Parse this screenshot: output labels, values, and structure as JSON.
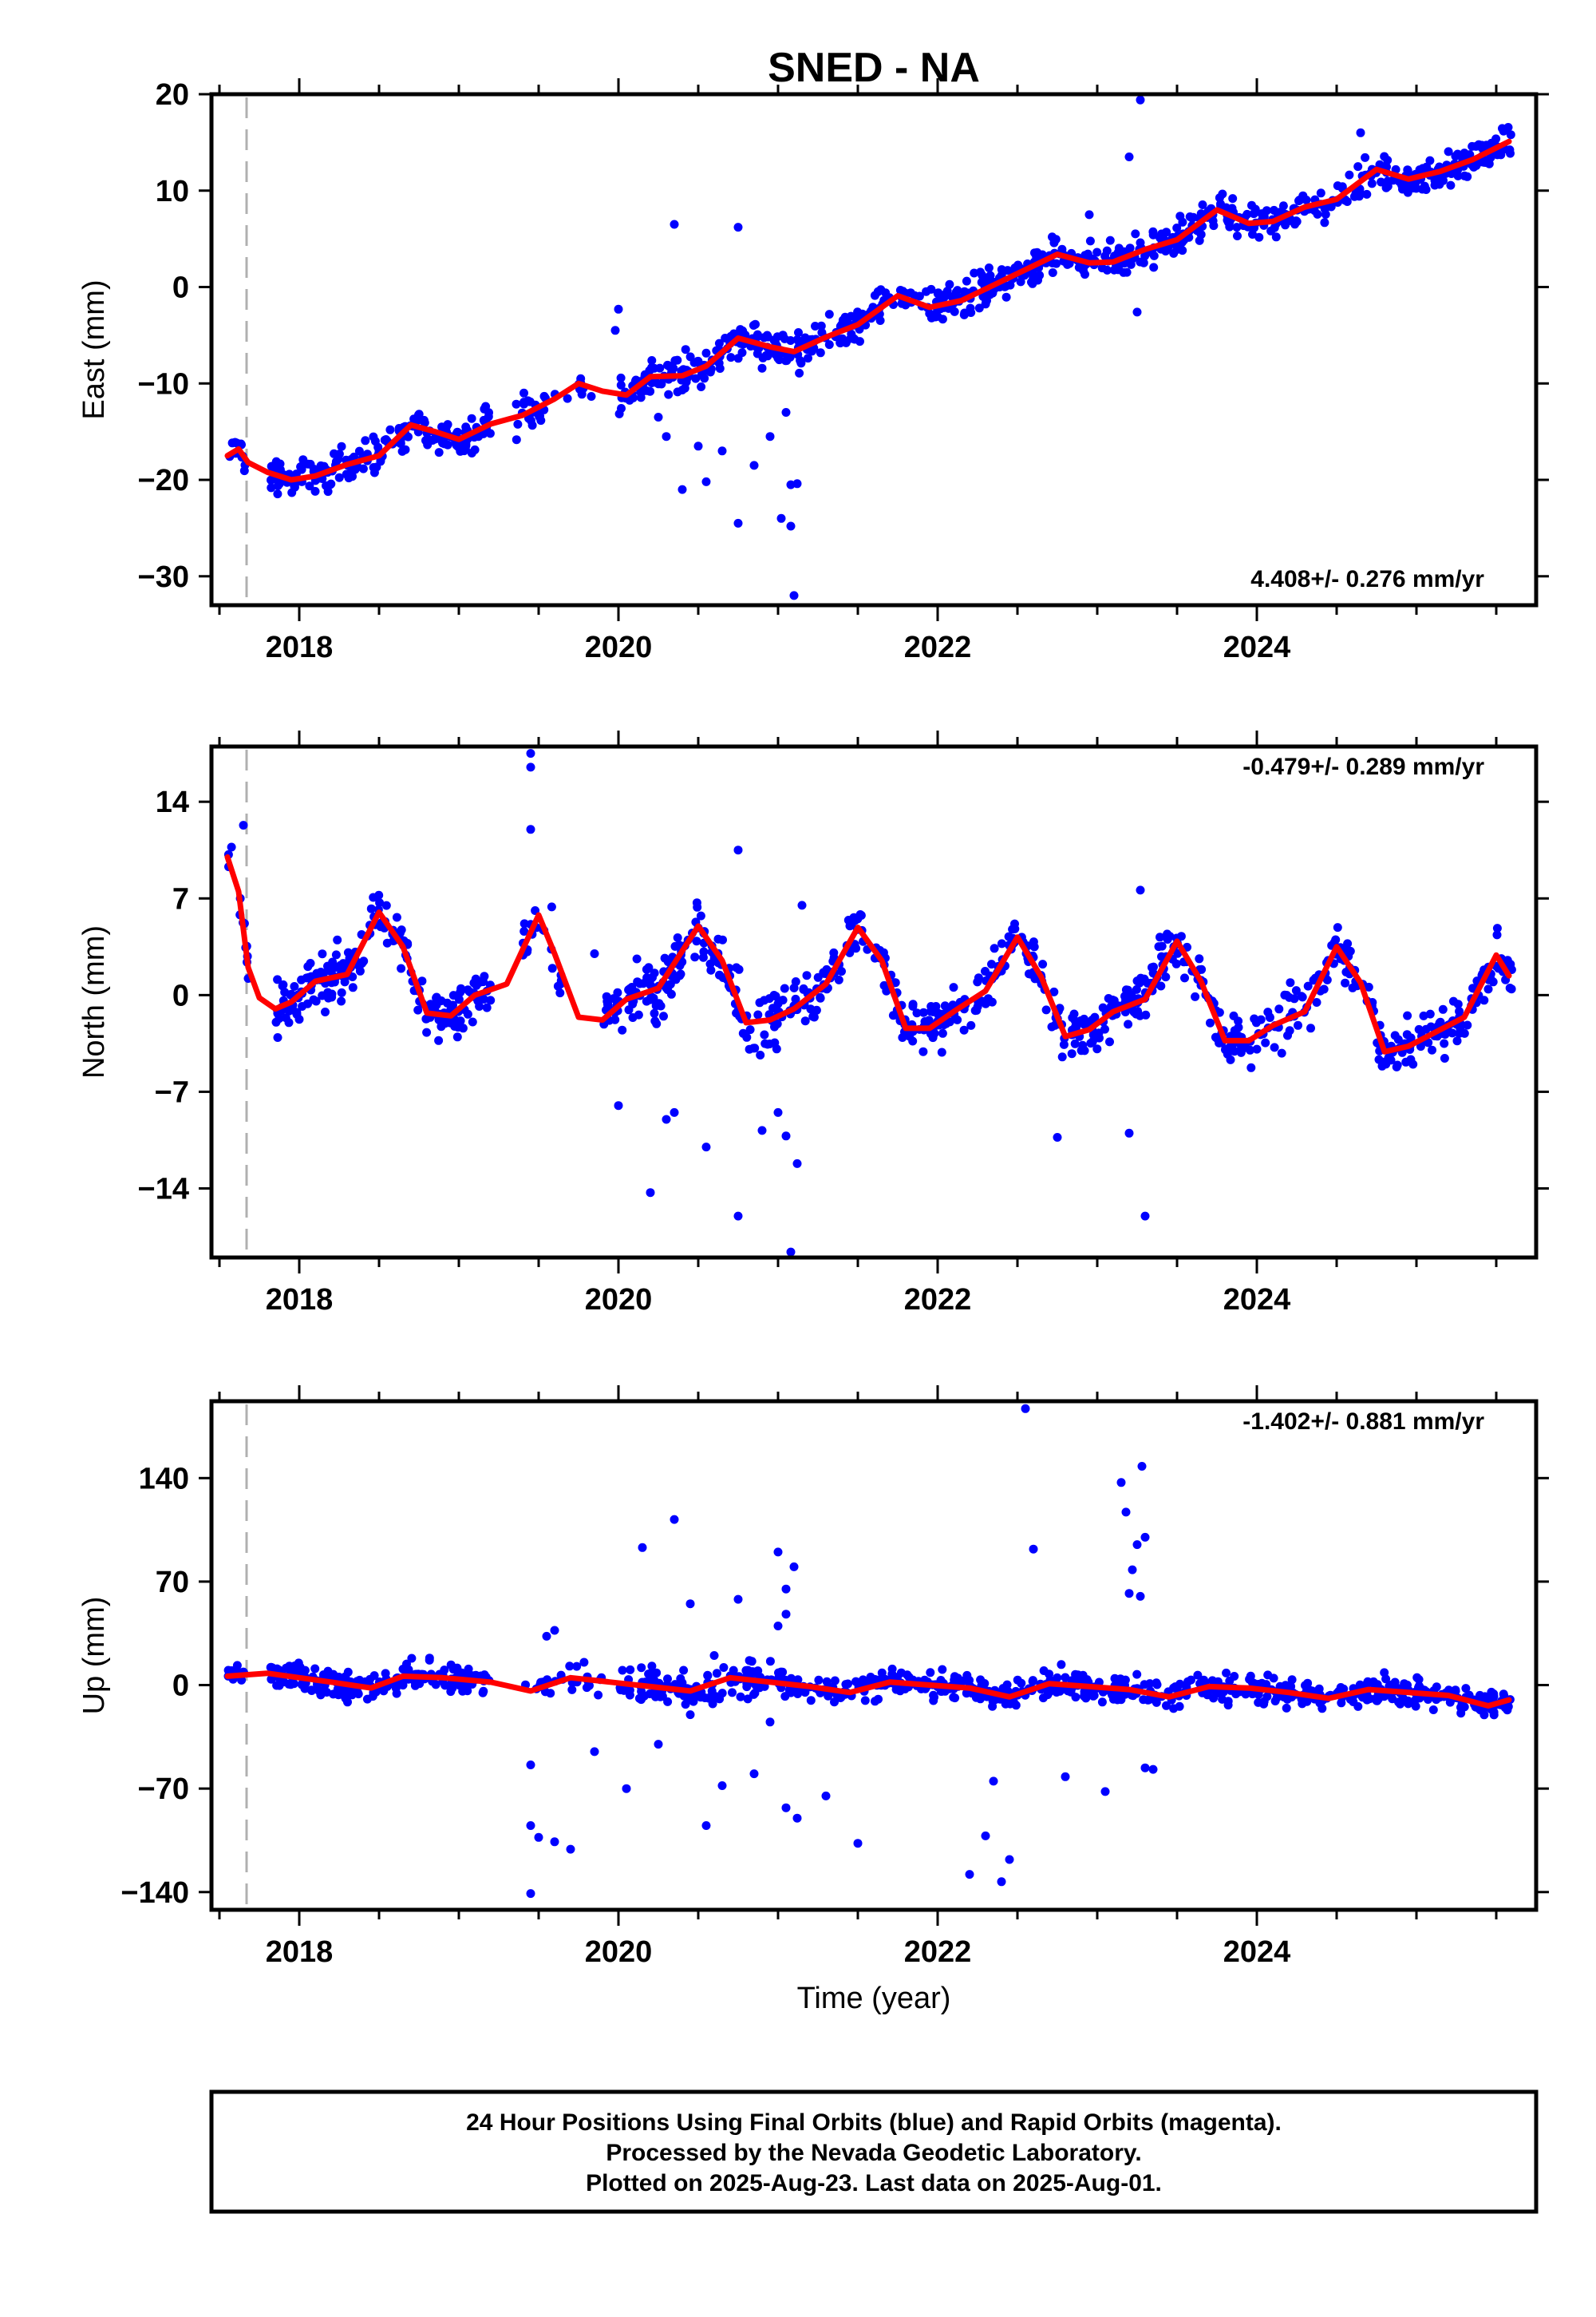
{
  "title": "SNED - NA",
  "xlabel": "Time (year)",
  "footer": {
    "line1": "24 Hour Positions Using Final Orbits (blue) and Rapid Orbits (magenta).",
    "line2": "Processed by the Nevada Geodetic Laboratory.",
    "line3": "Plotted on 2025-Aug-23. Last data on 2025-Aug-01."
  },
  "colors": {
    "points": "#0000ff",
    "trend": "#ff0000",
    "marker": "#b0b0b0"
  },
  "chart_data": [
    {
      "type": "scatter",
      "panel": "east",
      "ylabel": "East (mm)",
      "rate": "4.408+/- 0.276 mm/yr",
      "xlim": [
        2017.45,
        2025.75
      ],
      "ylim": [
        -33,
        20
      ],
      "yticks": [
        20,
        10,
        0,
        -10,
        -20,
        -30
      ],
      "xticks": [
        2018,
        2020,
        2022,
        2024
      ],
      "equipment_change_year": 2017.67,
      "trend": [
        [
          2017.55,
          -17.5
        ],
        [
          2017.62,
          -16.8
        ],
        [
          2017.68,
          -18.2
        ],
        [
          2017.8,
          -19.2
        ],
        [
          2017.95,
          -20.0
        ],
        [
          2018.1,
          -19.6
        ],
        [
          2018.3,
          -18.4
        ],
        [
          2018.5,
          -17.5
        ],
        [
          2018.7,
          -14.3
        ],
        [
          2018.85,
          -15.0
        ],
        [
          2019.0,
          -15.8
        ],
        [
          2019.2,
          -14.2
        ],
        [
          2019.4,
          -13.3
        ],
        [
          2019.6,
          -11.6
        ],
        [
          2019.75,
          -10.0
        ],
        [
          2019.9,
          -10.8
        ],
        [
          2020.05,
          -11.2
        ],
        [
          2020.2,
          -9.3
        ],
        [
          2020.4,
          -9.2
        ],
        [
          2020.55,
          -8.2
        ],
        [
          2020.75,
          -5.3
        ],
        [
          2020.95,
          -6.2
        ],
        [
          2021.1,
          -6.7
        ],
        [
          2021.3,
          -5.2
        ],
        [
          2021.5,
          -3.9
        ],
        [
          2021.75,
          -0.9
        ],
        [
          2021.95,
          -2.1
        ],
        [
          2022.15,
          -1.4
        ],
        [
          2022.35,
          0.2
        ],
        [
          2022.55,
          1.8
        ],
        [
          2022.75,
          3.4
        ],
        [
          2022.95,
          2.5
        ],
        [
          2023.1,
          2.6
        ],
        [
          2023.3,
          3.9
        ],
        [
          2023.5,
          4.9
        ],
        [
          2023.75,
          8.0
        ],
        [
          2023.95,
          6.6
        ],
        [
          2024.1,
          6.8
        ],
        [
          2024.3,
          8.3
        ],
        [
          2024.5,
          9.1
        ],
        [
          2024.75,
          12.2
        ],
        [
          2024.95,
          11.2
        ],
        [
          2025.15,
          12.0
        ],
        [
          2025.35,
          13.2
        ],
        [
          2025.58,
          15.1
        ]
      ],
      "segments": [
        {
          "x0": 2017.55,
          "x1": 2017.68,
          "y0": -17.0,
          "slope": 4.4,
          "amp": 0.4,
          "spread": 1.2,
          "n": 12
        },
        {
          "x0": 2017.82,
          "x1": 2019.2,
          "y0": -18.8,
          "slope": 1.2,
          "amp": 1.8,
          "spread": 1.3,
          "n": 200
        },
        {
          "x0": 2019.35,
          "x1": 2019.55,
          "y0": -12.0,
          "slope": 8.0,
          "amp": 1.5,
          "spread": 1.5,
          "n": 22
        },
        {
          "x0": 2019.6,
          "x1": 2019.85,
          "y0": -10.0,
          "slope": 1.0,
          "amp": 0.5,
          "spread": 1.3,
          "n": 8
        },
        {
          "x0": 2020.0,
          "x1": 2021.2,
          "y0": -9.6,
          "slope": 3.3,
          "amp": 1.5,
          "spread": 1.4,
          "n": 170
        },
        {
          "x0": 2021.2,
          "x1": 2025.6,
          "y0": -6.0,
          "slope": 4.6,
          "amp": 1.6,
          "spread": 1.3,
          "n": 560
        }
      ],
      "outliers": [
        [
          2020.35,
          6.5
        ],
        [
          2020.75,
          6.2
        ],
        [
          2020.75,
          -24.5
        ],
        [
          2021.02,
          -24.0
        ],
        [
          2021.08,
          -24.8
        ],
        [
          2021.1,
          -32.0
        ],
        [
          2021.08,
          -20.5
        ],
        [
          2021.12,
          -20.4
        ],
        [
          2020.4,
          -21.0
        ],
        [
          2020.55,
          -20.2
        ],
        [
          2020.85,
          -18.5
        ],
        [
          2020.95,
          -15.5
        ],
        [
          2020.5,
          -16.5
        ],
        [
          2020.3,
          -15.5
        ],
        [
          2020.25,
          -13.5
        ],
        [
          2021.05,
          -13.0
        ],
        [
          2020.65,
          -17.0
        ],
        [
          2023.27,
          19.4
        ],
        [
          2023.2,
          13.5
        ],
        [
          2023.25,
          -2.6
        ],
        [
          2022.95,
          7.5
        ],
        [
          2024.65,
          16.0
        ],
        [
          2019.78,
          -10.5
        ],
        [
          2020.0,
          -2.3
        ],
        [
          2019.98,
          -4.5
        ]
      ]
    },
    {
      "type": "scatter",
      "panel": "north",
      "ylabel": "North (mm)",
      "rate": "-0.479+/- 0.289 mm/yr",
      "xlim": [
        2017.45,
        2025.75
      ],
      "ylim": [
        -19,
        18
      ],
      "yticks": [
        14,
        7,
        0,
        -7,
        -14
      ],
      "xticks": [
        2018,
        2020,
        2022,
        2024
      ],
      "equipment_change_year": 2017.67,
      "trend": [
        [
          2017.55,
          10.0
        ],
        [
          2017.62,
          7.5
        ],
        [
          2017.68,
          2.0
        ],
        [
          2017.75,
          -0.2
        ],
        [
          2017.85,
          -1.0
        ],
        [
          2017.95,
          -0.5
        ],
        [
          2018.1,
          1.0
        ],
        [
          2018.3,
          1.5
        ],
        [
          2018.5,
          6.0
        ],
        [
          2018.65,
          3.5
        ],
        [
          2018.8,
          -1.3
        ],
        [
          2018.95,
          -1.5
        ],
        [
          2019.1,
          0.0
        ],
        [
          2019.3,
          0.8
        ],
        [
          2019.5,
          5.8
        ],
        [
          2019.6,
          3.0
        ],
        [
          2019.75,
          -1.6
        ],
        [
          2019.9,
          -1.8
        ],
        [
          2020.05,
          -0.3
        ],
        [
          2020.25,
          0.5
        ],
        [
          2020.5,
          5.0
        ],
        [
          2020.65,
          2.5
        ],
        [
          2020.8,
          -2.0
        ],
        [
          2020.95,
          -1.8
        ],
        [
          2021.1,
          -1.0
        ],
        [
          2021.3,
          0.8
        ],
        [
          2021.5,
          4.9
        ],
        [
          2021.65,
          2.5
        ],
        [
          2021.8,
          -2.4
        ],
        [
          2021.95,
          -2.4
        ],
        [
          2022.1,
          -1.2
        ],
        [
          2022.3,
          0.3
        ],
        [
          2022.5,
          4.2
        ],
        [
          2022.65,
          1.3
        ],
        [
          2022.8,
          -3.0
        ],
        [
          2022.95,
          -2.5
        ],
        [
          2023.1,
          -1.2
        ],
        [
          2023.3,
          -0.3
        ],
        [
          2023.5,
          3.9
        ],
        [
          2023.65,
          1.0
        ],
        [
          2023.8,
          -3.3
        ],
        [
          2023.95,
          -3.3
        ],
        [
          2024.1,
          -2.2
        ],
        [
          2024.3,
          -1.2
        ],
        [
          2024.5,
          3.5
        ],
        [
          2024.65,
          0.9
        ],
        [
          2024.8,
          -4.1
        ],
        [
          2024.95,
          -3.7
        ],
        [
          2025.1,
          -2.8
        ],
        [
          2025.3,
          -1.6
        ],
        [
          2025.5,
          2.9
        ],
        [
          2025.58,
          1.4
        ]
      ],
      "segments": [
        {
          "x0": 2017.55,
          "x1": 2017.68,
          "y0": 8.5,
          "slope": -20.0,
          "amp": 0.0,
          "spread": 1.2,
          "n": 12
        },
        {
          "x0": 2017.85,
          "x1": 2019.2,
          "y0": 0.0,
          "slope": 0.0,
          "amp": 3.4,
          "spread": 1.3,
          "n": 220
        },
        {
          "x0": 2019.4,
          "x1": 2019.65,
          "y0": 0.0,
          "slope": 0.0,
          "amp": 3.4,
          "spread": 1.5,
          "n": 20
        },
        {
          "x0": 2019.9,
          "x1": 2021.2,
          "y0": 0.3,
          "slope": 0.0,
          "amp": 3.4,
          "spread": 1.5,
          "n": 180
        },
        {
          "x0": 2021.2,
          "x1": 2025.6,
          "y0": 0.5,
          "slope": -0.45,
          "amp": 3.4,
          "spread": 1.3,
          "n": 560
        }
      ],
      "outliers": [
        [
          2017.65,
          12.3
        ],
        [
          2019.45,
          17.5
        ],
        [
          2019.45,
          16.5
        ],
        [
          2019.45,
          12.0
        ],
        [
          2021.08,
          -18.6
        ],
        [
          2020.75,
          -16.0
        ],
        [
          2023.3,
          -16.0
        ],
        [
          2020.2,
          -14.3
        ],
        [
          2021.12,
          -12.2
        ],
        [
          2021.05,
          -10.2
        ],
        [
          2022.75,
          -10.3
        ],
        [
          2023.2,
          -10.0
        ],
        [
          2023.27,
          7.6
        ],
        [
          2020.0,
          -8.0
        ],
        [
          2020.35,
          -8.5
        ],
        [
          2020.55,
          -11.0
        ],
        [
          2020.9,
          -9.8
        ],
        [
          2021.0,
          -8.5
        ],
        [
          2020.3,
          -9.0
        ],
        [
          2019.85,
          3.0
        ],
        [
          2020.75,
          10.5
        ],
        [
          2021.15,
          6.5
        ]
      ]
    },
    {
      "type": "scatter",
      "panel": "up",
      "ylabel": "Up (mm)",
      "rate": "-1.402+/- 0.881 mm/yr",
      "xlim": [
        2017.45,
        2025.75
      ],
      "ylim": [
        -152,
        192
      ],
      "yticks": [
        140,
        70,
        0,
        -70,
        -140
      ],
      "xticks": [
        2018,
        2020,
        2022,
        2024
      ],
      "equipment_change_year": 2017.67,
      "trend": [
        [
          2017.55,
          6.0
        ],
        [
          2017.8,
          8.0
        ],
        [
          2018.0,
          5.0
        ],
        [
          2018.2,
          2.0
        ],
        [
          2018.45,
          -2.0
        ],
        [
          2018.65,
          6.0
        ],
        [
          2018.9,
          5.0
        ],
        [
          2019.2,
          2.0
        ],
        [
          2019.45,
          -4.0
        ],
        [
          2019.7,
          5.0
        ],
        [
          2019.95,
          2.0
        ],
        [
          2020.2,
          -1.0
        ],
        [
          2020.45,
          -4.0
        ],
        [
          2020.7,
          5.0
        ],
        [
          2020.95,
          2.0
        ],
        [
          2021.2,
          -1.0
        ],
        [
          2021.45,
          -5.0
        ],
        [
          2021.7,
          2.0
        ],
        [
          2021.95,
          0.0
        ],
        [
          2022.2,
          -2.0
        ],
        [
          2022.45,
          -8.0
        ],
        [
          2022.7,
          1.0
        ],
        [
          2022.95,
          -1.0
        ],
        [
          2023.2,
          -3.0
        ],
        [
          2023.45,
          -8.0
        ],
        [
          2023.7,
          -1.0
        ],
        [
          2023.95,
          -2.0
        ],
        [
          2024.2,
          -5.0
        ],
        [
          2024.45,
          -9.0
        ],
        [
          2024.7,
          -3.0
        ],
        [
          2024.95,
          -5.0
        ],
        [
          2025.2,
          -7.0
        ],
        [
          2025.45,
          -14.0
        ],
        [
          2025.58,
          -10.0
        ]
      ],
      "segments": [
        {
          "x0": 2017.55,
          "x1": 2017.68,
          "y0": 8.0,
          "slope": 0.0,
          "amp": 0.0,
          "spread": 6.0,
          "n": 12
        },
        {
          "x0": 2017.82,
          "x1": 2019.2,
          "y0": 5.0,
          "slope": -1.2,
          "amp": 3.0,
          "spread": 6.5,
          "n": 200
        },
        {
          "x0": 2019.4,
          "x1": 2019.9,
          "y0": 2.0,
          "slope": 0.0,
          "amp": 3.0,
          "spread": 8.0,
          "n": 25
        },
        {
          "x0": 2020.0,
          "x1": 2021.2,
          "y0": 2.0,
          "slope": -1.5,
          "amp": 3.0,
          "spread": 9.0,
          "n": 150
        },
        {
          "x0": 2021.2,
          "x1": 2025.6,
          "y0": 1.0,
          "slope": -2.3,
          "amp": 3.5,
          "spread": 6.5,
          "n": 560
        }
      ],
      "outliers": [
        [
          2019.45,
          -141.0
        ],
        [
          2019.45,
          -95.0
        ],
        [
          2019.5,
          -103.0
        ],
        [
          2019.6,
          -106.0
        ],
        [
          2019.7,
          -111.0
        ],
        [
          2019.45,
          -54.0
        ],
        [
          2019.55,
          33.0
        ],
        [
          2019.6,
          37.0
        ],
        [
          2019.85,
          -45.0
        ],
        [
          2020.05,
          -70.0
        ],
        [
          2020.15,
          93.0
        ],
        [
          2020.35,
          112.0
        ],
        [
          2020.45,
          55.0
        ],
        [
          2020.55,
          -95.0
        ],
        [
          2020.65,
          -68.0
        ],
        [
          2020.75,
          58.0
        ],
        [
          2020.85,
          -60.0
        ],
        [
          2021.0,
          90.0
        ],
        [
          2021.05,
          65.0
        ],
        [
          2021.1,
          80.0
        ],
        [
          2021.05,
          -83.0
        ],
        [
          2021.12,
          -90.0
        ],
        [
          2021.3,
          -75.0
        ],
        [
          2021.5,
          -107.0
        ],
        [
          2022.2,
          -128.0
        ],
        [
          2022.3,
          -102.0
        ],
        [
          2022.4,
          -133.0
        ],
        [
          2022.45,
          -118.0
        ],
        [
          2022.35,
          -65.0
        ],
        [
          2022.55,
          187.0
        ],
        [
          2022.6,
          92.0
        ],
        [
          2022.8,
          -62.0
        ],
        [
          2023.05,
          -72.0
        ],
        [
          2023.15,
          137.0
        ],
        [
          2023.18,
          117.0
        ],
        [
          2023.2,
          62.0
        ],
        [
          2023.22,
          78.0
        ],
        [
          2023.25,
          95.0
        ],
        [
          2023.28,
          148.0
        ],
        [
          2023.3,
          100.0
        ],
        [
          2023.3,
          -56.0
        ],
        [
          2023.35,
          -57.0
        ],
        [
          2023.27,
          60.0
        ],
        [
          2021.05,
          48.0
        ],
        [
          2020.95,
          -25.0
        ],
        [
          2020.25,
          -40.0
        ],
        [
          2020.6,
          20.0
        ],
        [
          2021.0,
          40.0
        ],
        [
          2020.45,
          -20.0
        ]
      ]
    }
  ]
}
